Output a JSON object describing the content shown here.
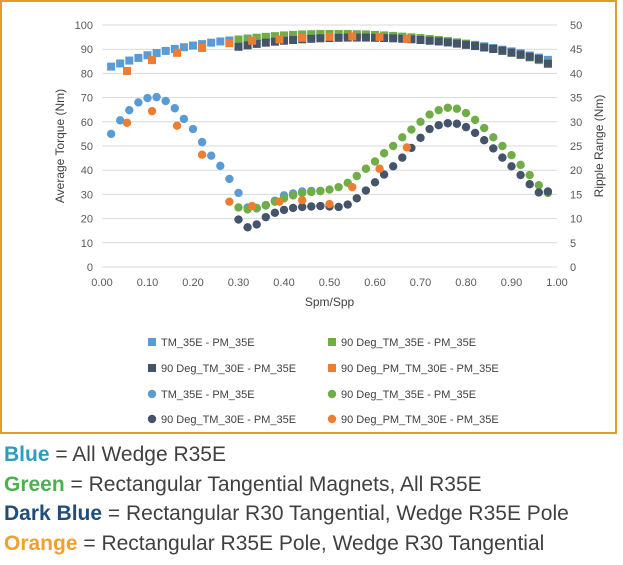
{
  "chart_data": {
    "type": "scatter",
    "xlabel": "Spm/Spp",
    "ylabel": "Average Torque (Nm)",
    "y2label": "Ripple Range (Nm)",
    "xlim": [
      0,
      1
    ],
    "ylim": [
      0,
      100
    ],
    "y2lim": [
      0,
      50
    ],
    "x_ticks": [
      "0.00",
      "0.10",
      "0.20",
      "0.30",
      "0.40",
      "0.50",
      "0.60",
      "0.70",
      "0.80",
      "0.90",
      "1.00"
    ],
    "y_ticks": [
      "0",
      "10",
      "20",
      "30",
      "40",
      "50",
      "60",
      "70",
      "80",
      "90",
      "100"
    ],
    "y2_ticks": [
      "0",
      "5",
      "10",
      "15",
      "20",
      "25",
      "30",
      "35",
      "40",
      "45",
      "50"
    ],
    "grid": "horizontal",
    "legend_position": "bottom",
    "series": [
      {
        "name": "TM_35E - PM_35E",
        "marker": "square",
        "color": "#5b9bd5",
        "axis": "left",
        "x": [
          0.02,
          0.04,
          0.06,
          0.08,
          0.1,
          0.12,
          0.14,
          0.16,
          0.18,
          0.2,
          0.22,
          0.24,
          0.26,
          0.28,
          0.3,
          0.32,
          0.34,
          0.36,
          0.38,
          0.4,
          0.42,
          0.44,
          0.46,
          0.48,
          0.5,
          0.52,
          0.54,
          0.56,
          0.58,
          0.6,
          0.62,
          0.64,
          0.66,
          0.68,
          0.7,
          0.72,
          0.74,
          0.76,
          0.78,
          0.8,
          0.82,
          0.84,
          0.86,
          0.88,
          0.9,
          0.92,
          0.94,
          0.96,
          0.98
        ],
        "y": [
          82.8,
          84.1,
          85.3,
          86.4,
          87.5,
          88.4,
          89.3,
          90.1,
          90.8,
          91.5,
          92.1,
          92.7,
          93.2,
          93.6,
          94.0,
          94.4,
          94.7,
          95.0,
          95.2,
          95.4,
          95.6,
          95.7,
          95.8,
          95.9,
          95.9,
          95.9,
          95.9,
          95.8,
          95.7,
          95.6,
          95.4,
          95.2,
          95.0,
          94.7,
          94.4,
          94.1,
          93.7,
          93.3,
          92.8,
          92.3,
          91.8,
          91.2,
          90.5,
          89.8,
          89.1,
          88.3,
          87.4,
          86.5,
          85.6
        ]
      },
      {
        "name": "90 Deg_TM_35E - PM_35E",
        "marker": "square",
        "color": "#70ad47",
        "axis": "left",
        "x": [
          0.3,
          0.32,
          0.34,
          0.36,
          0.38,
          0.4,
          0.42,
          0.44,
          0.46,
          0.48,
          0.5,
          0.52,
          0.54,
          0.56,
          0.58,
          0.6,
          0.62,
          0.64,
          0.66,
          0.68,
          0.7,
          0.72,
          0.74,
          0.76,
          0.78,
          0.8,
          0.82,
          0.84,
          0.86,
          0.88,
          0.9,
          0.92,
          0.94,
          0.96,
          0.98
        ],
        "y": [
          93.8,
          94.3,
          94.7,
          95.1,
          95.4,
          95.7,
          95.9,
          96.1,
          96.2,
          96.3,
          96.3,
          96.3,
          96.3,
          96.2,
          96.1,
          95.9,
          95.7,
          95.5,
          95.2,
          94.9,
          94.6,
          94.2,
          93.8,
          93.3,
          92.8,
          92.2,
          91.6,
          90.9,
          90.1,
          89.3,
          88.5,
          87.6,
          86.6,
          85.5,
          84.4
        ]
      },
      {
        "name": "90 Deg_TM_30E - PM_35E",
        "marker": "square",
        "color": "#44546a",
        "axis": "left",
        "x": [
          0.3,
          0.32,
          0.34,
          0.36,
          0.38,
          0.4,
          0.42,
          0.44,
          0.46,
          0.48,
          0.5,
          0.52,
          0.54,
          0.56,
          0.58,
          0.6,
          0.62,
          0.64,
          0.66,
          0.68,
          0.7,
          0.72,
          0.74,
          0.76,
          0.78,
          0.8,
          0.82,
          0.84,
          0.86,
          0.88,
          0.9,
          0.92,
          0.94,
          0.96,
          0.98
        ],
        "y": [
          91.0,
          91.6,
          92.2,
          92.7,
          93.1,
          93.5,
          93.8,
          94.1,
          94.3,
          94.5,
          94.6,
          94.7,
          94.8,
          94.8,
          94.8,
          94.7,
          94.6,
          94.5,
          94.3,
          94.1,
          93.8,
          93.5,
          93.2,
          92.8,
          92.3,
          91.8,
          91.3,
          90.7,
          90.1,
          89.4,
          88.6,
          87.8,
          86.9,
          86.0,
          84.0
        ]
      },
      {
        "name": "90 Deg_PM_TM_30E - PM_35E",
        "marker": "square",
        "color": "#ed7d31",
        "axis": "left",
        "x": [
          0.055,
          0.11,
          0.165,
          0.22,
          0.28,
          0.33,
          0.39,
          0.44,
          0.5,
          0.55,
          0.61,
          0.67
        ],
        "y": [
          81.0,
          85.5,
          88.5,
          90.5,
          92.5,
          93.5,
          94.0,
          94.7,
          95.1,
          95.3,
          95.1,
          94.3
        ]
      },
      {
        "name": "TM_35E - PM_35E",
        "marker": "circle",
        "color": "#5b9bd5",
        "axis": "right",
        "x": [
          0.02,
          0.04,
          0.06,
          0.08,
          0.1,
          0.12,
          0.14,
          0.16,
          0.18,
          0.2,
          0.22,
          0.24,
          0.26,
          0.28,
          0.3,
          0.32,
          0.34,
          0.36,
          0.38,
          0.4,
          0.42,
          0.44,
          0.46,
          0.48
        ],
        "y": [
          27.5,
          30.3,
          32.4,
          34.0,
          34.9,
          35.1,
          34.3,
          32.8,
          30.6,
          28.5,
          25.8,
          23.0,
          20.9,
          18.2,
          15.3,
          12.3,
          12.1,
          12.7,
          13.7,
          14.8,
          15.2,
          15.6,
          15.7,
          15.7
        ]
      },
      {
        "name": "90 Deg_TM_35E - PM_35E",
        "marker": "circle",
        "color": "#70ad47",
        "axis": "right",
        "x": [
          0.3,
          0.32,
          0.34,
          0.36,
          0.38,
          0.4,
          0.42,
          0.44,
          0.46,
          0.48,
          0.5,
          0.52,
          0.54,
          0.56,
          0.58,
          0.6,
          0.62,
          0.64,
          0.66,
          0.68,
          0.7,
          0.72,
          0.74,
          0.76,
          0.78,
          0.8,
          0.82,
          0.84,
          0.86,
          0.88,
          0.9,
          0.92,
          0.94,
          0.96,
          0.98
        ],
        "y": [
          12.3,
          11.9,
          12.2,
          12.8,
          13.5,
          14.2,
          14.8,
          15.3,
          15.5,
          15.7,
          16.0,
          16.5,
          17.4,
          18.8,
          20.3,
          21.8,
          23.5,
          25.0,
          26.8,
          28.4,
          30.0,
          31.5,
          32.4,
          32.9,
          32.7,
          31.8,
          30.4,
          28.7,
          26.8,
          25.0,
          23.1,
          21.1,
          19.0,
          16.9,
          15.3
        ]
      },
      {
        "name": "90 Deg_TM_30E - PM_35E",
        "marker": "circle",
        "color": "#44546a",
        "axis": "right",
        "x": [
          0.3,
          0.32,
          0.34,
          0.36,
          0.38,
          0.4,
          0.42,
          0.44,
          0.46,
          0.48,
          0.5,
          0.52,
          0.54,
          0.56,
          0.58,
          0.6,
          0.62,
          0.64,
          0.66,
          0.68,
          0.7,
          0.72,
          0.74,
          0.76,
          0.78,
          0.8,
          0.82,
          0.84,
          0.86,
          0.88,
          0.9,
          0.92,
          0.94,
          0.96,
          0.98
        ],
        "y": [
          9.8,
          8.2,
          8.8,
          10.3,
          11.2,
          11.8,
          12.2,
          12.4,
          12.5,
          12.6,
          12.5,
          12.4,
          12.9,
          14.2,
          15.8,
          17.5,
          19.1,
          20.8,
          22.6,
          24.6,
          26.7,
          28.5,
          29.3,
          29.7,
          29.6,
          28.9,
          27.7,
          26.2,
          24.5,
          22.6,
          20.8,
          19.0,
          17.1,
          15.4,
          15.6
        ]
      },
      {
        "name": "90 Deg_PM_TM_30E - PM_35E",
        "marker": "circle",
        "color": "#ed7d31",
        "axis": "right",
        "x": [
          0.055,
          0.11,
          0.165,
          0.22,
          0.28,
          0.33,
          0.39,
          0.44,
          0.5,
          0.55,
          0.61,
          0.67
        ],
        "y": [
          29.8,
          32.2,
          29.2,
          23.2,
          13.5,
          12.6,
          13.5,
          13.8,
          13.0,
          16.5,
          20.3,
          24.7
        ]
      }
    ]
  },
  "captions": [
    {
      "key": "Blue",
      "rest": " = All Wedge R35E",
      "color": "#2e9bbf"
    },
    {
      "key": "Green",
      "rest": " = Rectangular Tangential Magnets, All R35E",
      "color": "#4caf50"
    },
    {
      "key": "Dark Blue",
      "rest": " = Rectangular R30 Tangential, Wedge R35E Pole",
      "color": "#1f4e79"
    },
    {
      "key": "Orange",
      "rest": " = Rectangular R35E Pole,  Wedge R30 Tangential",
      "color": "#f0a030"
    }
  ]
}
